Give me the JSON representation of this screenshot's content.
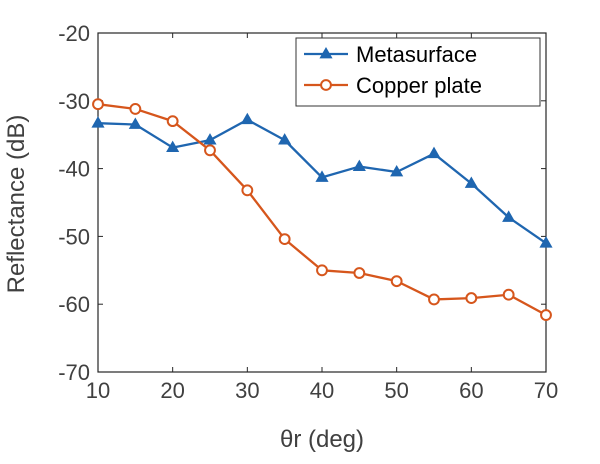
{
  "chart_data": {
    "type": "line",
    "title": "",
    "xlabel": "θr (deg)",
    "ylabel": "Reflectance (dB)",
    "xlim": [
      10,
      70
    ],
    "ylim": [
      -70,
      -20
    ],
    "xticks": [
      10,
      20,
      30,
      40,
      50,
      60,
      70
    ],
    "yticks": [
      -70,
      -60,
      -50,
      -40,
      -30,
      -20
    ],
    "x": [
      10,
      15,
      20,
      25,
      30,
      35,
      40,
      45,
      50,
      55,
      60,
      65,
      70
    ],
    "grid": false,
    "legend_position": "top-right",
    "series": [
      {
        "name": "Metasurface",
        "color": "#1f66b0",
        "marker": "triangle",
        "values": [
          -33.3,
          -33.5,
          -36.9,
          -35.8,
          -32.8,
          -35.8,
          -41.3,
          -39.7,
          -40.5,
          -37.8,
          -42.2,
          -47.2,
          -51.0
        ]
      },
      {
        "name": "Copper plate",
        "color": "#d6561c",
        "marker": "circle",
        "values": [
          -30.5,
          -31.2,
          -33.0,
          -37.3,
          -43.2,
          -50.4,
          -55.0,
          -55.4,
          -56.6,
          -59.3,
          -59.1,
          -58.6,
          -61.6
        ]
      }
    ]
  }
}
